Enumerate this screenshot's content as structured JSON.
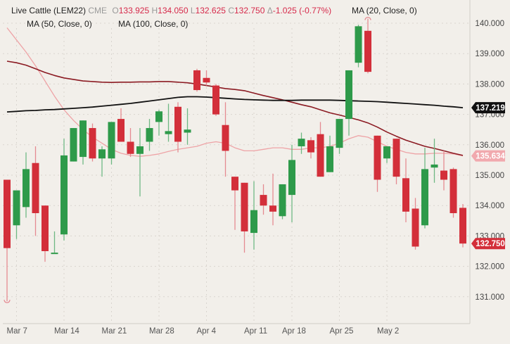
{
  "legend": {
    "instrument": "Live Cattle (LEM22)",
    "exchange": "CME",
    "open_prefix": "O",
    "open": "133.925",
    "high_prefix": "H",
    "high": "134.050",
    "low_prefix": "L",
    "low": "132.625",
    "close_prefix": "C",
    "close": "132.750",
    "change_prefix": "Δ",
    "change": "-1.025 (-0.77%)",
    "ma50": "MA (50, Close, 0)",
    "ma100": "MA (100, Close, 0)",
    "ma20": "MA (20, Close, 0)"
  },
  "colors": {
    "background": "#f2efea",
    "up": "#2e9a4a",
    "down": "#d32f3a",
    "ma20": "#eea3a6",
    "ma50": "#8b1a22",
    "ma100": "#111111",
    "negative_text": "#d6294a",
    "grid": "#d9d5cf"
  },
  "price_tags": {
    "ma100": "137.219",
    "ma20": "135.634",
    "last": "132.750"
  },
  "chart_data": {
    "type": "candlestick",
    "title": "Live Cattle (LEM22) CME",
    "xlabel": "",
    "ylabel": "",
    "ylim": [
      130.3,
      140.2
    ],
    "yticks": [
      "140.000",
      "139.000",
      "138.000",
      "137.000",
      "136.000",
      "135.000",
      "134.000",
      "133.000",
      "132.000",
      "131.000"
    ],
    "xticks": [
      {
        "label": "Mar 7",
        "index": 1
      },
      {
        "label": "Mar 14",
        "index": 6
      },
      {
        "label": "Mar 21",
        "index": 11
      },
      {
        "label": "Mar 28",
        "index": 16
      },
      {
        "label": "Apr 4",
        "index": 21
      },
      {
        "label": "Apr 11",
        "index": 26
      },
      {
        "label": "Apr 18",
        "index": 30
      },
      {
        "label": "Apr 25",
        "index": 35
      },
      {
        "label": "May 2",
        "index": 40
      }
    ],
    "grid": true,
    "legend_position": "top-left",
    "candles": [
      {
        "o": 134.85,
        "h": 134.85,
        "l": 130.85,
        "c": 132.6
      },
      {
        "o": 133.35,
        "h": 134.2,
        "l": 132.9,
        "c": 134.5
      },
      {
        "o": 133.95,
        "h": 135.75,
        "l": 133.6,
        "c": 135.2
      },
      {
        "o": 135.4,
        "h": 135.95,
        "l": 133.0,
        "c": 133.75
      },
      {
        "o": 134.0,
        "h": 134.0,
        "l": 132.15,
        "c": 132.5
      },
      {
        "o": 132.45,
        "h": 133.15,
        "l": 132.45,
        "c": 132.45
      },
      {
        "o": 133.05,
        "h": 136.2,
        "l": 132.85,
        "c": 135.65
      },
      {
        "o": 135.45,
        "h": 136.5,
        "l": 135.45,
        "c": 136.55
      },
      {
        "o": 135.6,
        "h": 136.45,
        "l": 135.35,
        "c": 136.8
      },
      {
        "o": 136.55,
        "h": 136.7,
        "l": 135.45,
        "c": 135.55
      },
      {
        "o": 135.55,
        "h": 135.95,
        "l": 134.95,
        "c": 135.85
      },
      {
        "o": 135.55,
        "h": 136.75,
        "l": 135.35,
        "c": 136.75
      },
      {
        "o": 136.85,
        "h": 137.2,
        "l": 136.25,
        "c": 136.1
      },
      {
        "o": 136.1,
        "h": 136.55,
        "l": 135.6,
        "c": 135.7
      },
      {
        "o": 135.7,
        "h": 136.55,
        "l": 134.3,
        "c": 135.95
      },
      {
        "o": 136.1,
        "h": 136.85,
        "l": 135.8,
        "c": 136.55
      },
      {
        "o": 136.75,
        "h": 137.15,
        "l": 136.3,
        "c": 137.1
      },
      {
        "o": 136.35,
        "h": 137.35,
        "l": 136.1,
        "c": 136.45
      },
      {
        "o": 137.25,
        "h": 137.4,
        "l": 135.75,
        "c": 136.1
      },
      {
        "o": 136.4,
        "h": 137.2,
        "l": 136.0,
        "c": 136.5
      },
      {
        "o": 138.45,
        "h": 138.5,
        "l": 137.75,
        "c": 137.8
      },
      {
        "o": 138.2,
        "h": 138.45,
        "l": 137.95,
        "c": 138.05
      },
      {
        "o": 137.95,
        "h": 138.0,
        "l": 136.95,
        "c": 137.0
      },
      {
        "o": 136.65,
        "h": 137.4,
        "l": 134.95,
        "c": 135.8
      },
      {
        "o": 134.95,
        "h": 134.95,
        "l": 133.2,
        "c": 134.5
      },
      {
        "o": 134.75,
        "h": 134.75,
        "l": 132.45,
        "c": 133.15
      },
      {
        "o": 133.1,
        "h": 134.8,
        "l": 132.55,
        "c": 133.85
      },
      {
        "o": 134.35,
        "h": 134.7,
        "l": 133.7,
        "c": 134.0
      },
      {
        "o": 134.0,
        "h": 135.05,
        "l": 133.35,
        "c": 133.8
      },
      {
        "o": 133.65,
        "h": 134.25,
        "l": 133.55,
        "c": 134.7
      },
      {
        "o": 134.35,
        "h": 136.0,
        "l": 133.45,
        "c": 135.5
      },
      {
        "o": 135.95,
        "h": 136.4,
        "l": 135.7,
        "c": 136.2
      },
      {
        "o": 136.15,
        "h": 136.25,
        "l": 135.55,
        "c": 135.75
      },
      {
        "o": 136.35,
        "h": 136.75,
        "l": 134.95,
        "c": 134.95
      },
      {
        "o": 135.1,
        "h": 136.3,
        "l": 135.45,
        "c": 135.95
      },
      {
        "o": 135.9,
        "h": 136.85,
        "l": 135.7,
        "c": 136.85
      },
      {
        "o": 136.85,
        "h": 137.25,
        "l": 136.3,
        "c": 138.45
      },
      {
        "o": 138.7,
        "h": 139.95,
        "l": 138.55,
        "c": 139.9
      },
      {
        "o": 139.75,
        "h": 140.15,
        "l": 138.35,
        "c": 138.4
      },
      {
        "o": 136.3,
        "h": 136.3,
        "l": 134.45,
        "c": 134.85
      },
      {
        "o": 135.55,
        "h": 135.95,
        "l": 135.4,
        "c": 135.95
      },
      {
        "o": 136.2,
        "h": 136.2,
        "l": 134.7,
        "c": 134.95
      },
      {
        "o": 134.9,
        "h": 135.55,
        "l": 133.45,
        "c": 133.8
      },
      {
        "o": 133.9,
        "h": 134.25,
        "l": 132.55,
        "c": 132.65
      },
      {
        "o": 133.35,
        "h": 135.9,
        "l": 133.25,
        "c": 135.2
      },
      {
        "o": 135.25,
        "h": 136.2,
        "l": 134.75,
        "c": 135.35
      },
      {
        "o": 135.15,
        "h": 135.8,
        "l": 134.5,
        "c": 134.85
      },
      {
        "o": 135.2,
        "h": 135.25,
        "l": 133.6,
        "c": 133.75
      },
      {
        "o": 133.925,
        "h": 134.05,
        "l": 132.625,
        "c": 132.75
      }
    ],
    "series": [
      {
        "name": "MA (20, Close, 0)",
        "color": "#eea3a6",
        "values": [
          139.85,
          139.45,
          139.05,
          138.6,
          138.1,
          137.6,
          137.15,
          136.8,
          136.5,
          136.25,
          136.05,
          135.85,
          135.72,
          135.65,
          135.62,
          135.65,
          135.7,
          135.78,
          135.85,
          135.9,
          135.95,
          136.05,
          136.1,
          136.05,
          135.9,
          135.8,
          135.8,
          135.85,
          135.9,
          135.9,
          135.85,
          135.85,
          135.9,
          135.9,
          135.95,
          136.05,
          136.2,
          136.3,
          136.25,
          136.1,
          135.95,
          135.85,
          135.75,
          135.7,
          135.7,
          135.72,
          135.72,
          135.7,
          135.634
        ]
      },
      {
        "name": "MA (50, Close, 0)",
        "color": "#8b1a22",
        "values": [
          138.75,
          138.7,
          138.62,
          138.5,
          138.38,
          138.28,
          138.2,
          138.15,
          138.1,
          138.08,
          138.06,
          138.05,
          138.06,
          138.06,
          138.07,
          138.07,
          138.08,
          138.08,
          138.06,
          138.04,
          138.0,
          137.95,
          137.9,
          137.85,
          137.82,
          137.78,
          137.7,
          137.62,
          137.55,
          137.48,
          137.4,
          137.32,
          137.25,
          137.15,
          137.05,
          136.98,
          136.9,
          136.82,
          136.72,
          136.58,
          136.42,
          136.28,
          136.15,
          136.05,
          135.95,
          135.88,
          135.8,
          135.72,
          135.65
        ]
      },
      {
        "name": "MA (100, Close, 0)",
        "color": "#111111",
        "values": [
          137.08,
          137.1,
          137.12,
          137.13,
          137.15,
          137.16,
          137.18,
          137.2,
          137.22,
          137.24,
          137.27,
          137.3,
          137.33,
          137.36,
          137.4,
          137.44,
          137.48,
          137.52,
          137.56,
          137.58,
          137.58,
          137.57,
          137.55,
          137.53,
          137.51,
          137.49,
          137.48,
          137.47,
          137.46,
          137.46,
          137.46,
          137.47,
          137.47,
          137.47,
          137.47,
          137.46,
          137.45,
          137.44,
          137.43,
          137.42,
          137.4,
          137.38,
          137.36,
          137.34,
          137.32,
          137.3,
          137.27,
          137.25,
          137.219
        ]
      }
    ]
  }
}
